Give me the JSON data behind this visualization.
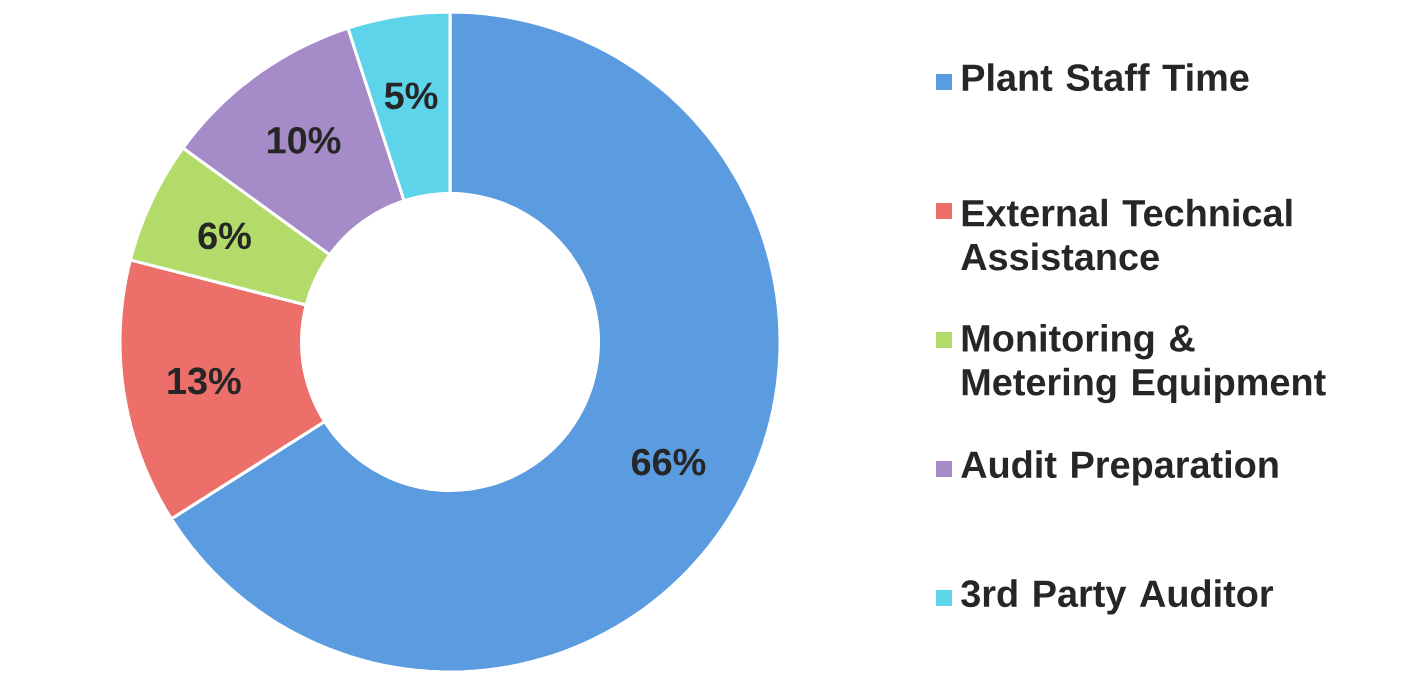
{
  "chart_data": {
    "type": "donut",
    "categories": [
      "Plant Staff Time",
      "External Technical Assistance",
      "Monitoring & Metering Equipment",
      "Audit Preparation",
      "3rd Party Auditor"
    ],
    "values": [
      66,
      13,
      6,
      10,
      5
    ],
    "value_labels": [
      "66%",
      "13%",
      "6%",
      "10%",
      "5%"
    ],
    "colors": [
      "#5b9be0",
      "#ec6f6a",
      "#b3db6a",
      "#a58cc8",
      "#5ed4ea"
    ],
    "legend": "right"
  }
}
